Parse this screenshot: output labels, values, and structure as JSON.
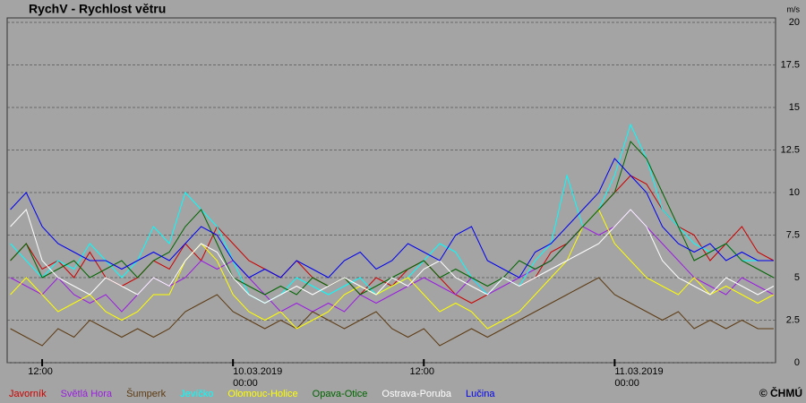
{
  "chart_data": {
    "type": "line",
    "title": "RychV - Rychlost větru",
    "y_unit": "m/s",
    "credit": "© ČHMÚ",
    "x": [
      "2019-03-09T10:00",
      "2019-03-09T11:00",
      "2019-03-09T12:00",
      "2019-03-09T13:00",
      "2019-03-09T14:00",
      "2019-03-09T15:00",
      "2019-03-09T16:00",
      "2019-03-09T17:00",
      "2019-03-09T18:00",
      "2019-03-09T19:00",
      "2019-03-09T20:00",
      "2019-03-09T21:00",
      "2019-03-09T22:00",
      "2019-03-09T23:00",
      "2019-03-10T00:00",
      "2019-03-10T01:00",
      "2019-03-10T02:00",
      "2019-03-10T03:00",
      "2019-03-10T04:00",
      "2019-03-10T05:00",
      "2019-03-10T06:00",
      "2019-03-10T07:00",
      "2019-03-10T08:00",
      "2019-03-10T09:00",
      "2019-03-10T10:00",
      "2019-03-10T11:00",
      "2019-03-10T12:00",
      "2019-03-10T13:00",
      "2019-03-10T14:00",
      "2019-03-10T15:00",
      "2019-03-10T16:00",
      "2019-03-10T17:00",
      "2019-03-10T18:00",
      "2019-03-10T19:00",
      "2019-03-10T20:00",
      "2019-03-10T21:00",
      "2019-03-10T22:00",
      "2019-03-10T23:00",
      "2019-03-11T00:00",
      "2019-03-11T01:00",
      "2019-03-11T02:00",
      "2019-03-11T03:00",
      "2019-03-11T04:00",
      "2019-03-11T05:00",
      "2019-03-11T06:00",
      "2019-03-11T07:00",
      "2019-03-11T08:00",
      "2019-03-11T09:00",
      "2019-03-11T10:00"
    ],
    "xlim": [
      "2019-03-09T09:48",
      "2019-03-11T10:07"
    ],
    "xticks": [
      {
        "value": "2019-03-09T12:00",
        "label": [
          "12:00"
        ]
      },
      {
        "value": "2019-03-10T00:00",
        "label": [
          "10.03.2019",
          "00:00"
        ]
      },
      {
        "value": "2019-03-10T12:00",
        "label": [
          "12:00"
        ]
      },
      {
        "value": "2019-03-11T00:00",
        "label": [
          "11.03.2019",
          "00:00"
        ]
      }
    ],
    "ylim": [
      0,
      20
    ],
    "yticks": [
      0,
      2.5,
      5,
      7.5,
      10,
      12.5,
      15,
      17.5,
      20
    ],
    "grid": true,
    "series": [
      {
        "name": "Javorník",
        "color": "#cc0000",
        "values": [
          6,
          7,
          5.5,
          6,
          5,
          6.5,
          5,
          4.5,
          5,
          6,
          5.5,
          7,
          6,
          8,
          7,
          6,
          5.5,
          5,
          6,
          5,
          4.5,
          5,
          4,
          5,
          4.5,
          5.5,
          6,
          5,
          4,
          3.5,
          4,
          5,
          4.5,
          5,
          6.5,
          7,
          8,
          9,
          10,
          11,
          10.5,
          9,
          8,
          7.5,
          6,
          7,
          8,
          6.5,
          6
        ]
      },
      {
        "name": "Světlá Hora",
        "color": "#9a1ee0",
        "values": [
          5,
          4.5,
          4,
          5,
          4,
          3.5,
          4,
          3,
          4,
          5,
          4.5,
          5,
          6,
          5.5,
          6,
          5,
          4,
          3,
          3.5,
          3,
          3.5,
          3,
          4,
          3.5,
          4,
          4.5,
          5,
          4.5,
          4,
          5,
          4,
          4.5,
          5,
          5.5,
          6,
          7,
          8,
          7.5,
          8,
          9,
          8,
          7,
          6,
          5,
          4.5,
          4,
          5,
          4.5,
          4
        ]
      },
      {
        "name": "Šumperk",
        "color": "#5c3a12",
        "values": [
          2,
          1.5,
          1,
          2,
          1.5,
          2.5,
          2,
          1.5,
          2,
          1.5,
          2,
          3,
          3.5,
          4,
          3,
          2.5,
          2,
          2.5,
          2,
          3,
          2.5,
          2,
          2.5,
          3,
          2,
          1.5,
          2,
          1,
          1.5,
          2,
          1.5,
          2,
          2.5,
          3,
          3.5,
          4,
          4.5,
          5,
          4,
          3.5,
          3,
          2.5,
          3,
          2,
          2.5,
          2,
          2.5,
          2,
          2
        ]
      },
      {
        "name": "Jevíčko",
        "color": "#00ffff",
        "values": [
          7,
          6,
          5,
          6,
          5.5,
          7,
          6,
          5,
          6,
          8,
          7,
          10,
          9,
          8,
          6,
          4,
          3.5,
          4,
          5,
          4.5,
          4,
          4.5,
          5,
          4,
          4.5,
          5,
          6,
          7,
          6.5,
          5,
          4,
          5,
          4.5,
          6,
          7,
          11,
          8,
          9,
          11,
          14,
          12,
          9,
          8,
          7,
          6.5,
          7,
          6,
          6,
          6
        ]
      },
      {
        "name": "Olomouc-Holice",
        "color": "#ffff00",
        "values": [
          4,
          5,
          4,
          3,
          3.5,
          4,
          3,
          2.5,
          3,
          4,
          4,
          6,
          7,
          6,
          4,
          3,
          2.5,
          3,
          2,
          2.5,
          3,
          4,
          4.5,
          4,
          4.5,
          5,
          4,
          3,
          3.5,
          3,
          2,
          2.5,
          3,
          4,
          5,
          6,
          8,
          9,
          7,
          6,
          5,
          4.5,
          4,
          5,
          4,
          4.5,
          4,
          3.5,
          4
        ]
      },
      {
        "name": "Opava-Otice",
        "color": "#006400",
        "values": [
          6,
          7,
          5,
          5.5,
          6,
          5,
          5.5,
          6,
          5,
          6,
          6.5,
          8,
          9,
          7,
          5,
          4.5,
          4,
          4.5,
          4,
          5,
          4.5,
          5,
          4,
          4.5,
          5,
          5.5,
          6,
          5,
          5.5,
          5,
          4.5,
          5,
          6,
          5.5,
          6,
          7,
          8,
          9,
          10,
          13,
          12,
          10,
          8,
          6,
          6.5,
          7,
          6,
          5.5,
          5
        ]
      },
      {
        "name": "Ostrava-Poruba",
        "color": "#ffffff",
        "values": [
          8,
          9,
          6,
          5,
          4.5,
          4,
          5,
          4.5,
          4,
          5,
          4.5,
          6,
          7,
          6.5,
          5,
          4,
          3.5,
          4,
          4.5,
          4,
          4.5,
          5,
          4.5,
          4,
          5,
          4.5,
          5.5,
          6,
          5,
          4.5,
          4,
          5,
          4.5,
          5,
          5.5,
          6,
          6.5,
          7,
          8,
          9,
          8,
          6,
          5,
          4.5,
          4,
          5,
          4.5,
          4,
          4.5
        ]
      },
      {
        "name": "Lučina",
        "color": "#0000ee",
        "values": [
          9,
          10,
          8,
          7,
          6.5,
          6,
          6,
          5.5,
          6,
          6.5,
          6,
          7,
          8,
          7.5,
          6,
          5,
          5.5,
          5,
          6,
          5.5,
          5,
          6,
          6.5,
          5.5,
          6,
          7,
          6.5,
          6,
          7.5,
          8,
          6,
          5.5,
          5,
          6.5,
          7,
          8,
          9,
          10,
          12,
          11,
          10,
          8,
          7,
          6.5,
          7,
          6,
          6.5,
          6,
          6
        ]
      }
    ]
  }
}
